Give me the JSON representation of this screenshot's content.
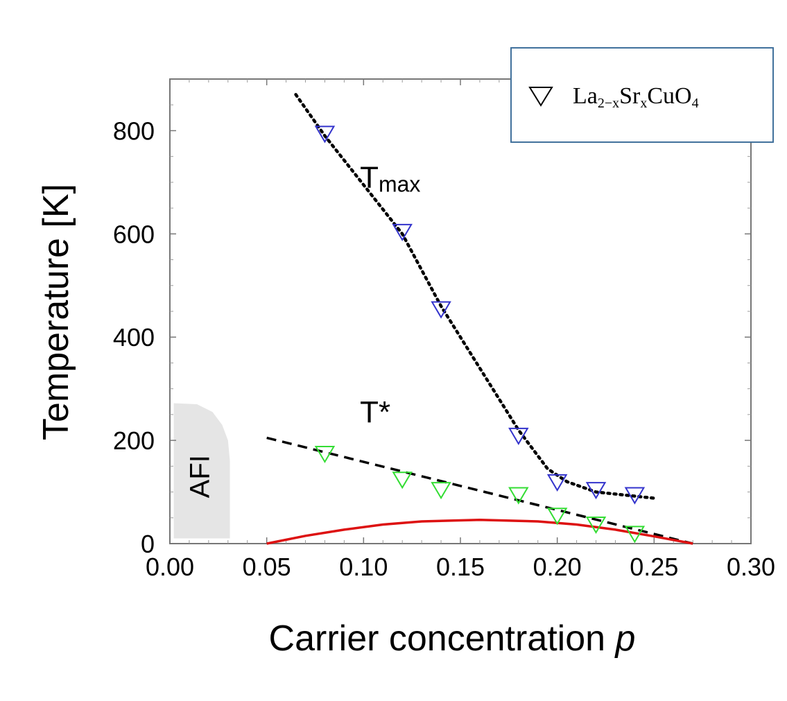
{
  "chart_data": {
    "type": "scatter",
    "xlabel": "Carrier concentration",
    "xlabel_var": "p",
    "ylabel": "Temperature [K]",
    "xlim": [
      0.0,
      0.3
    ],
    "ylim": [
      0,
      900
    ],
    "x_ticks": [
      "0.00",
      "0.05",
      "0.10",
      "0.15",
      "0.20",
      "0.25",
      "0.30"
    ],
    "y_ticks": [
      "0",
      "200",
      "400",
      "600",
      "800"
    ],
    "grid": false,
    "legend": {
      "position": "top-right",
      "entries": [
        {
          "marker": "open-down-triangle",
          "label": "La2-xSrxCuO4"
        }
      ]
    },
    "series": [
      {
        "name": "Tmax",
        "marker": "open-down-triangle",
        "color": "#3333cc",
        "points": [
          {
            "x": 0.08,
            "y": 795
          },
          {
            "x": 0.12,
            "y": 605
          },
          {
            "x": 0.14,
            "y": 455
          },
          {
            "x": 0.18,
            "y": 210
          },
          {
            "x": 0.2,
            "y": 120
          },
          {
            "x": 0.22,
            "y": 105
          },
          {
            "x": 0.24,
            "y": 95
          }
        ]
      },
      {
        "name": "T*",
        "marker": "open-down-triangle",
        "color": "#33dd33",
        "points": [
          {
            "x": 0.08,
            "y": 175
          },
          {
            "x": 0.12,
            "y": 125
          },
          {
            "x": 0.14,
            "y": 105
          },
          {
            "x": 0.18,
            "y": 95
          },
          {
            "x": 0.2,
            "y": 55
          },
          {
            "x": 0.22,
            "y": 38
          },
          {
            "x": 0.24,
            "y": 20
          }
        ]
      }
    ],
    "curves": [
      {
        "id": "tmax-fit",
        "style": "dotted",
        "color": "#000000",
        "points": [
          [
            0.065,
            870
          ],
          [
            0.08,
            790
          ],
          [
            0.12,
            600
          ],
          [
            0.14,
            460
          ],
          [
            0.18,
            220
          ],
          [
            0.195,
            145
          ],
          [
            0.205,
            120
          ],
          [
            0.22,
            100
          ],
          [
            0.25,
            88
          ]
        ]
      },
      {
        "id": "tstar-fit",
        "style": "dashed",
        "color": "#000000",
        "points": [
          [
            0.05,
            205
          ],
          [
            0.27,
            0
          ]
        ]
      },
      {
        "id": "tc-dome",
        "style": "solid",
        "color": "#dd1111",
        "points": [
          [
            0.05,
            0
          ],
          [
            0.07,
            15
          ],
          [
            0.09,
            27
          ],
          [
            0.11,
            37
          ],
          [
            0.13,
            43
          ],
          [
            0.16,
            46
          ],
          [
            0.19,
            43
          ],
          [
            0.21,
            37
          ],
          [
            0.23,
            27
          ],
          [
            0.25,
            14
          ],
          [
            0.27,
            0
          ]
        ]
      }
    ],
    "annotations": [
      {
        "id": "tmax",
        "text": "T",
        "sub": "max",
        "x": 0.048,
        "y": 690
      },
      {
        "id": "tstar",
        "text": "T*",
        "x": 0.048,
        "y": 235
      }
    ],
    "region": {
      "label": "AFI",
      "color": "#e5e5e5",
      "outline": [
        [
          0.002,
          10
        ],
        [
          0.002,
          272
        ],
        [
          0.014,
          270
        ],
        [
          0.022,
          255
        ],
        [
          0.027,
          230
        ],
        [
          0.03,
          200
        ],
        [
          0.031,
          160
        ],
        [
          0.031,
          10
        ]
      ]
    }
  }
}
